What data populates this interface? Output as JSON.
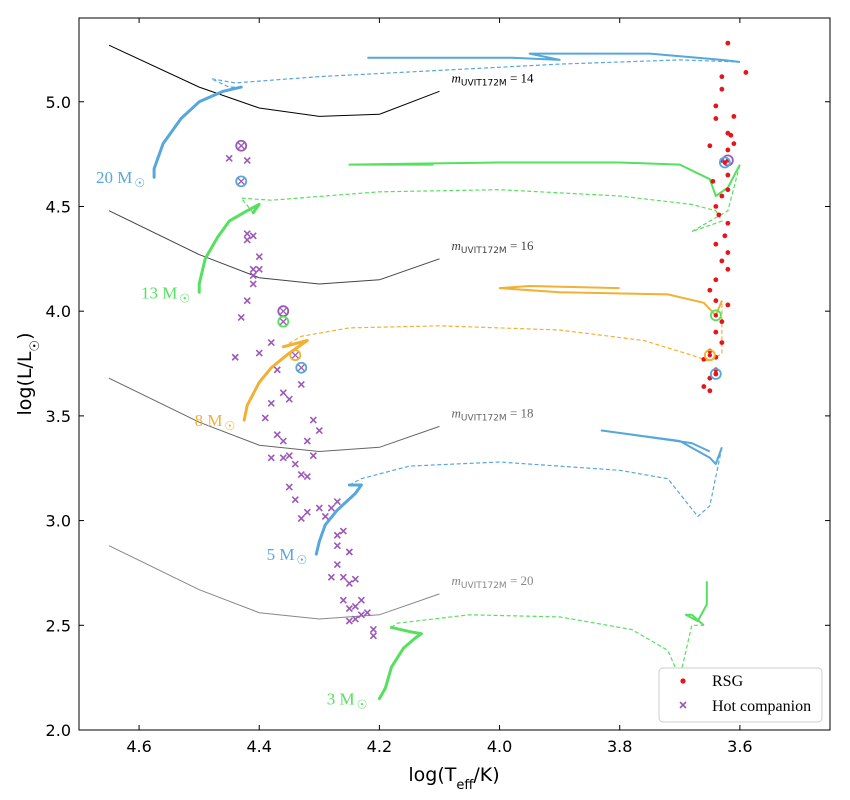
{
  "chart_data": {
    "type": "scatter",
    "title": "",
    "xlabel": "log(T_eff/K)",
    "ylabel": "log(L/L☉)",
    "xlim": [
      4.7,
      3.45
    ],
    "ylim": [
      2.0,
      5.4
    ],
    "x_ticks": [
      {
        "v": 4.6,
        "label": "4.6"
      },
      {
        "v": 4.4,
        "label": "4.4"
      },
      {
        "v": 4.2,
        "label": "4.2"
      },
      {
        "v": 4.0,
        "label": "4.0"
      },
      {
        "v": 3.8,
        "label": "3.8"
      },
      {
        "v": 3.6,
        "label": "3.6"
      }
    ],
    "y_ticks": [
      {
        "v": 2.0,
        "label": "2.0"
      },
      {
        "v": 2.5,
        "label": "2.5"
      },
      {
        "v": 3.0,
        "label": "3.0"
      },
      {
        "v": 3.5,
        "label": "3.5"
      },
      {
        "v": 4.0,
        "label": "4.0"
      },
      {
        "v": 4.5,
        "label": "4.5"
      },
      {
        "v": 5.0,
        "label": "5.0"
      }
    ],
    "colors": {
      "blue": "#56a7da",
      "green": "#55e05e",
      "orange": "#f2b035",
      "red": "#e6141b",
      "purple": "#9a59b8"
    },
    "magnitude_limits": [
      {
        "label": "= 14",
        "color": "#000000",
        "points": [
          [
            4.65,
            5.27
          ],
          [
            4.5,
            5.07
          ],
          [
            4.4,
            4.97
          ],
          [
            4.3,
            4.93
          ],
          [
            4.2,
            4.94
          ],
          [
            4.1,
            5.05
          ]
        ]
      },
      {
        "label": "= 16",
        "color": "#444444",
        "points": [
          [
            4.65,
            4.48
          ],
          [
            4.5,
            4.27
          ],
          [
            4.4,
            4.16
          ],
          [
            4.3,
            4.13
          ],
          [
            4.2,
            4.15
          ],
          [
            4.1,
            4.25
          ]
        ]
      },
      {
        "label": "= 18",
        "color": "#666666",
        "points": [
          [
            4.65,
            3.68
          ],
          [
            4.5,
            3.47
          ],
          [
            4.4,
            3.36
          ],
          [
            4.3,
            3.33
          ],
          [
            4.2,
            3.35
          ],
          [
            4.1,
            3.45
          ]
        ]
      },
      {
        "label": "= 20",
        "color": "#888888",
        "points": [
          [
            4.65,
            2.88
          ],
          [
            4.5,
            2.67
          ],
          [
            4.4,
            2.56
          ],
          [
            4.3,
            2.53
          ],
          [
            4.2,
            2.55
          ],
          [
            4.1,
            2.65
          ]
        ]
      }
    ],
    "magnitude_symbol": "m",
    "magnitude_subscript": "UVIT172M",
    "tracks": [
      {
        "mass": "20 M",
        "color": "#56a7da",
        "solid": [
          [
            4.575,
            4.64
          ],
          [
            4.575,
            4.68
          ],
          [
            4.56,
            4.8
          ],
          [
            4.53,
            4.92
          ],
          [
            4.5,
            5.0
          ],
          [
            4.46,
            5.05
          ],
          [
            4.43,
            5.07
          ]
        ],
        "dashed": [
          [
            4.43,
            5.07
          ],
          [
            4.45,
            5.07
          ],
          [
            4.48,
            5.11
          ],
          [
            4.44,
            5.09
          ],
          [
            4.3,
            5.12
          ],
          [
            4.1,
            5.15
          ],
          [
            3.9,
            5.18
          ],
          [
            3.7,
            5.2
          ],
          [
            3.6,
            5.19
          ]
        ],
        "loop": [
          [
            3.6,
            5.19
          ],
          [
            3.63,
            5.2
          ],
          [
            3.75,
            5.23
          ],
          [
            3.95,
            5.23
          ],
          [
            3.9,
            5.2
          ],
          [
            3.98,
            5.21
          ],
          [
            4.22,
            5.21
          ]
        ]
      },
      {
        "mass": "13 M",
        "color": "#55e05e",
        "solid": [
          [
            4.5,
            4.09
          ],
          [
            4.5,
            4.13
          ],
          [
            4.49,
            4.25
          ],
          [
            4.47,
            4.35
          ],
          [
            4.45,
            4.43
          ],
          [
            4.42,
            4.48
          ],
          [
            4.4,
            4.51
          ],
          [
            4.41,
            4.47
          ]
        ],
        "dashed": [
          [
            4.41,
            4.47
          ],
          [
            4.43,
            4.54
          ],
          [
            4.38,
            4.53
          ],
          [
            4.2,
            4.57
          ],
          [
            4.0,
            4.58
          ],
          [
            3.8,
            4.55
          ],
          [
            3.68,
            4.51
          ],
          [
            3.64,
            4.48
          ],
          [
            3.63,
            4.43
          ],
          [
            3.68,
            4.38
          ],
          [
            3.62,
            4.48
          ],
          [
            3.6,
            4.7
          ]
        ],
        "loop": [
          [
            3.6,
            4.7
          ],
          [
            3.62,
            4.59
          ],
          [
            3.64,
            4.55
          ],
          [
            3.65,
            4.63
          ],
          [
            3.7,
            4.7
          ],
          [
            3.8,
            4.71
          ],
          [
            4.0,
            4.71
          ],
          [
            4.25,
            4.7
          ],
          [
            4.11,
            4.7
          ]
        ]
      },
      {
        "mass": "8 M",
        "color": "#f2b035",
        "solid": [
          [
            4.425,
            3.48
          ],
          [
            4.42,
            3.55
          ],
          [
            4.4,
            3.66
          ],
          [
            4.38,
            3.73
          ],
          [
            4.35,
            3.8
          ],
          [
            4.32,
            3.86
          ],
          [
            4.36,
            3.83
          ]
        ],
        "dashed": [
          [
            4.36,
            3.83
          ],
          [
            4.33,
            3.88
          ],
          [
            4.25,
            3.92
          ],
          [
            4.1,
            3.93
          ],
          [
            3.9,
            3.91
          ],
          [
            3.76,
            3.86
          ],
          [
            3.68,
            3.79
          ],
          [
            3.65,
            3.76
          ],
          [
            3.63,
            3.8
          ],
          [
            3.63,
            4.05
          ]
        ],
        "loop": [
          [
            3.63,
            4.05
          ],
          [
            3.64,
            3.98
          ],
          [
            3.66,
            4.04
          ],
          [
            3.72,
            4.08
          ],
          [
            3.9,
            4.09
          ],
          [
            4.0,
            4.11
          ],
          [
            3.95,
            4.12
          ],
          [
            3.8,
            4.11
          ]
        ]
      },
      {
        "mass": "5 M",
        "color": "#56a7da",
        "solid": [
          [
            4.305,
            2.84
          ],
          [
            4.3,
            2.9
          ],
          [
            4.29,
            2.98
          ],
          [
            4.27,
            3.05
          ],
          [
            4.24,
            3.13
          ],
          [
            4.23,
            3.17
          ],
          [
            4.25,
            3.17
          ]
        ],
        "dashed": [
          [
            4.25,
            3.17
          ],
          [
            4.23,
            3.2
          ],
          [
            4.15,
            3.26
          ],
          [
            4.0,
            3.28
          ],
          [
            3.8,
            3.24
          ],
          [
            3.72,
            3.2
          ],
          [
            3.67,
            3.02
          ],
          [
            3.65,
            3.07
          ],
          [
            3.63,
            3.35
          ]
        ],
        "loop": [
          [
            3.63,
            3.35
          ],
          [
            3.64,
            3.27
          ],
          [
            3.65,
            3.3
          ],
          [
            3.7,
            3.38
          ],
          [
            3.83,
            3.43
          ],
          [
            3.68,
            3.37
          ],
          [
            3.65,
            3.33
          ]
        ]
      },
      {
        "mass": "3 M",
        "color": "#55e05e",
        "solid": [
          [
            4.2,
            2.15
          ],
          [
            4.19,
            2.2
          ],
          [
            4.18,
            2.3
          ],
          [
            4.16,
            2.39
          ],
          [
            4.14,
            2.44
          ],
          [
            4.13,
            2.46
          ],
          [
            4.15,
            2.47
          ],
          [
            4.18,
            2.49
          ]
        ],
        "dashed": [
          [
            4.18,
            2.49
          ],
          [
            4.17,
            2.51
          ],
          [
            4.05,
            2.55
          ],
          [
            3.9,
            2.54
          ],
          [
            3.78,
            2.48
          ],
          [
            3.72,
            2.38
          ],
          [
            3.7,
            2.25
          ],
          [
            3.68,
            2.5
          ],
          [
            3.66,
            2.5
          ]
        ],
        "loop": [
          [
            3.66,
            2.5
          ],
          [
            3.68,
            2.55
          ],
          [
            3.69,
            2.55
          ],
          [
            3.67,
            2.52
          ],
          [
            3.655,
            2.6
          ],
          [
            3.655,
            2.71
          ]
        ]
      }
    ],
    "mass_labels": [
      {
        "text": "20 M",
        "color": "#56a7da",
        "x": 4.58,
        "y": 4.64
      },
      {
        "text": "13 M",
        "color": "#55e05e",
        "x": 4.505,
        "y": 4.09
      },
      {
        "text": "8 M",
        "color": "#f2b035",
        "x": 4.43,
        "y": 3.48
      },
      {
        "text": "5 M",
        "color": "#56a7da",
        "x": 4.31,
        "y": 2.84
      },
      {
        "text": "3 M",
        "color": "#55e05e",
        "x": 4.21,
        "y": 2.15
      }
    ],
    "rsg_points": [
      [
        3.62,
        5.28
      ],
      [
        3.59,
        5.14
      ],
      [
        3.63,
        5.12
      ],
      [
        3.64,
        4.92
      ],
      [
        3.62,
        4.85
      ],
      [
        3.61,
        4.93
      ],
      [
        3.65,
        4.79
      ],
      [
        3.62,
        4.77
      ],
      [
        3.63,
        4.72
      ],
      [
        3.62,
        4.65
      ],
      [
        3.63,
        4.55
      ],
      [
        3.64,
        4.5
      ],
      [
        3.62,
        4.42
      ],
      [
        3.64,
        4.32
      ],
      [
        3.63,
        4.24
      ],
      [
        3.62,
        4.2
      ],
      [
        3.64,
        4.15
      ],
      [
        3.65,
        4.1
      ],
      [
        3.64,
        4.05
      ],
      [
        3.62,
        4.03
      ],
      [
        3.63,
        3.95
      ],
      [
        3.64,
        3.9
      ],
      [
        3.63,
        3.85
      ],
      [
        3.65,
        3.81
      ],
      [
        3.64,
        3.78
      ],
      [
        3.66,
        3.77
      ],
      [
        3.64,
        3.72
      ],
      [
        3.65,
        3.68
      ],
      [
        3.64,
        3.7
      ],
      [
        3.66,
        3.64
      ],
      [
        3.65,
        3.62
      ],
      [
        3.62,
        4.58
      ],
      [
        3.635,
        4.46
      ],
      [
        3.625,
        4.36
      ],
      [
        3.645,
        4.62
      ],
      [
        3.61,
        4.8
      ],
      [
        3.63,
        5.06
      ],
      [
        3.64,
        4.98
      ],
      [
        3.615,
        4.84
      ],
      [
        3.62,
        4.28
      ]
    ],
    "hot_companions": [
      [
        4.45,
        4.73
      ],
      [
        4.42,
        4.37
      ],
      [
        4.41,
        4.36
      ],
      [
        4.42,
        4.34
      ],
      [
        4.41,
        4.2
      ],
      [
        4.4,
        4.2
      ],
      [
        4.41,
        4.17
      ],
      [
        4.42,
        4.05
      ],
      [
        4.41,
        4.13
      ],
      [
        4.4,
        4.26
      ],
      [
        4.43,
        3.97
      ],
      [
        4.44,
        3.78
      ],
      [
        4.4,
        3.8
      ],
      [
        4.38,
        3.85
      ],
      [
        4.37,
        3.72
      ],
      [
        4.36,
        3.61
      ],
      [
        4.35,
        3.58
      ],
      [
        4.38,
        3.56
      ],
      [
        4.33,
        3.65
      ],
      [
        4.39,
        3.49
      ],
      [
        4.37,
        3.41
      ],
      [
        4.36,
        3.38
      ],
      [
        4.36,
        3.3
      ],
      [
        4.35,
        3.31
      ],
      [
        4.34,
        3.27
      ],
      [
        4.31,
        3.48
      ],
      [
        4.3,
        3.43
      ],
      [
        4.32,
        3.38
      ],
      [
        4.33,
        3.22
      ],
      [
        4.35,
        3.16
      ],
      [
        4.34,
        3.1
      ],
      [
        4.32,
        3.04
      ],
      [
        4.33,
        3.01
      ],
      [
        4.3,
        3.06
      ],
      [
        4.29,
        3.02
      ],
      [
        4.28,
        3.06
      ],
      [
        4.27,
        3.09
      ],
      [
        4.31,
        3.31
      ],
      [
        4.32,
        3.21
      ],
      [
        4.27,
        2.93
      ],
      [
        4.26,
        2.95
      ],
      [
        4.25,
        2.85
      ],
      [
        4.27,
        2.88
      ],
      [
        4.28,
        2.73
      ],
      [
        4.27,
        2.79
      ],
      [
        4.26,
        2.73
      ],
      [
        4.25,
        2.7
      ],
      [
        4.24,
        2.72
      ],
      [
        4.26,
        2.62
      ],
      [
        4.25,
        2.58
      ],
      [
        4.24,
        2.59
      ],
      [
        4.23,
        2.62
      ],
      [
        4.22,
        2.56
      ],
      [
        4.23,
        2.55
      ],
      [
        4.24,
        2.53
      ],
      [
        4.25,
        2.52
      ],
      [
        4.21,
        2.48
      ],
      [
        4.21,
        2.45
      ],
      [
        4.38,
        3.3
      ],
      [
        4.42,
        4.72
      ]
    ],
    "circled_points": [
      {
        "x": 4.43,
        "y": 4.79,
        "ring": "#9a59b8",
        "marker": "x"
      },
      {
        "x": 4.43,
        "y": 4.62,
        "ring": "#56a7da",
        "marker": "x"
      },
      {
        "x": 4.36,
        "y": 4.0,
        "ring": "#9a59b8",
        "marker": "x"
      },
      {
        "x": 4.36,
        "y": 3.95,
        "ring": "#55e05e",
        "marker": "x"
      },
      {
        "x": 4.34,
        "y": 3.79,
        "ring": "#f2b035",
        "marker": "x"
      },
      {
        "x": 4.33,
        "y": 3.73,
        "ring": "#56a7da",
        "marker": "x"
      },
      {
        "x": 3.62,
        "y": 4.72,
        "ring": "#9a59b8",
        "marker": "dot"
      },
      {
        "x": 3.625,
        "y": 4.71,
        "ring": "#56a7da",
        "marker": "dot"
      },
      {
        "x": 3.64,
        "y": 3.98,
        "ring": "#55e05e",
        "marker": "dot"
      },
      {
        "x": 3.65,
        "y": 3.79,
        "ring": "#f2b035",
        "marker": "dot"
      },
      {
        "x": 3.64,
        "y": 3.7,
        "ring": "#56a7da",
        "marker": "dot"
      }
    ],
    "legend": {
      "position": "bottom-right",
      "entries": [
        {
          "label": "RSG",
          "marker": "dot",
          "color": "#e6141b"
        },
        {
          "label": "Hot companion",
          "marker": "x",
          "color": "#9a59b8"
        }
      ]
    }
  }
}
